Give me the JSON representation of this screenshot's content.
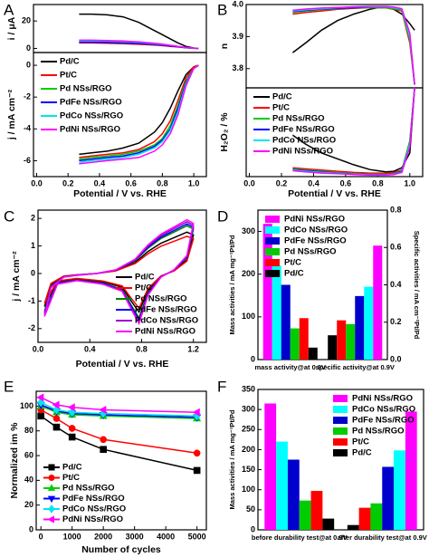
{
  "chart_data": [
    {
      "type": "line",
      "label": "A",
      "ylabel": "i / μA",
      "x": [
        0.27,
        0.35,
        0.45,
        0.55,
        0.65,
        0.75,
        0.8,
        0.85,
        0.9,
        0.95,
        1.0,
        1.03
      ],
      "xlim": [
        -0.02,
        1.08
      ],
      "ylim": [
        -3,
        32
      ],
      "yticks": [
        0,
        20
      ],
      "series": [
        {
          "color": "#000000",
          "values": [
            25,
            25,
            24.5,
            23,
            19,
            13,
            10,
            7,
            4,
            1.5,
            0.3,
            0
          ]
        },
        {
          "color": "#ff0000",
          "values": [
            4,
            4,
            3.8,
            3.5,
            3,
            2.4,
            2,
            1.5,
            1,
            0.5,
            0.1,
            0
          ]
        },
        {
          "color": "#00cc00",
          "values": [
            5,
            5,
            4.8,
            4.5,
            4,
            3.2,
            2.7,
            2,
            1.3,
            0.6,
            0.1,
            0
          ]
        },
        {
          "color": "#0000ff",
          "values": [
            4.5,
            4.5,
            4.3,
            4,
            3.6,
            2.9,
            2.4,
            1.8,
            1.2,
            0.5,
            0.1,
            0
          ]
        },
        {
          "color": "#00e5ee",
          "values": [
            5.5,
            5.5,
            5.3,
            5,
            4.4,
            3.5,
            2.9,
            2.2,
            1.4,
            0.6,
            0.1,
            0
          ]
        },
        {
          "color": "#ff00ff",
          "values": [
            6,
            6,
            5.8,
            5.4,
            4.8,
            3.8,
            3.1,
            2.3,
            1.5,
            0.7,
            0.1,
            0
          ]
        }
      ]
    },
    {
      "type": "line",
      "xlabel": "Potential / V vs. RHE",
      "ylabel": "j / mA cm⁻²",
      "x": [
        0.27,
        0.35,
        0.45,
        0.55,
        0.65,
        0.75,
        0.8,
        0.85,
        0.9,
        0.95,
        1.0,
        1.03
      ],
      "xlim": [
        -0.02,
        1.08
      ],
      "xticks": [
        {
          "value": 0,
          "label": "0.0"
        },
        0.2,
        0.4,
        0.6,
        0.8,
        {
          "value": 1,
          "label": "1.0"
        }
      ],
      "ylim": [
        -7,
        0.8
      ],
      "yticks": [
        -6,
        -4,
        -2,
        0
      ],
      "legend": "upper left",
      "series": [
        {
          "name": "Pd/C",
          "color": "#000000",
          "values": [
            -5.6,
            -5.5,
            -5.4,
            -5.2,
            -4.9,
            -4.2,
            -3.6,
            -2.7,
            -1.6,
            -0.6,
            -0.1,
            0
          ]
        },
        {
          "name": "Pt/C",
          "color": "#ff0000",
          "values": [
            -5.8,
            -5.7,
            -5.6,
            -5.5,
            -5.3,
            -4.8,
            -4.3,
            -3.5,
            -2.2,
            -0.8,
            -0.1,
            0
          ]
        },
        {
          "name": "Pd NSs/RGO",
          "color": "#00cc00",
          "values": [
            -5.9,
            -5.8,
            -5.7,
            -5.6,
            -5.4,
            -5.0,
            -4.6,
            -3.8,
            -2.5,
            -1.0,
            -0.2,
            0
          ]
        },
        {
          "name": "PdFe NSs/RGO",
          "color": "#0000ff",
          "values": [
            -6.0,
            -5.9,
            -5.8,
            -5.7,
            -5.5,
            -5.1,
            -4.7,
            -4.0,
            -2.7,
            -1.1,
            -0.2,
            0
          ]
        },
        {
          "name": "PdCo NSs/RGO",
          "color": "#00e5ee",
          "values": [
            -6.1,
            -6.0,
            -5.9,
            -5.8,
            -5.6,
            -5.2,
            -4.8,
            -4.1,
            -2.9,
            -1.2,
            -0.2,
            0
          ]
        },
        {
          "name": "PdNi NSs/RGO",
          "color": "#ff00ff",
          "values": [
            -6.2,
            -6.1,
            -6.0,
            -5.9,
            -5.8,
            -5.4,
            -5.0,
            -4.3,
            -3.1,
            -1.3,
            -0.2,
            0
          ]
        }
      ]
    },
    {
      "type": "line",
      "label": "B",
      "ylabel": "n",
      "x": [
        0.27,
        0.35,
        0.45,
        0.55,
        0.65,
        0.75,
        0.8,
        0.85,
        0.9,
        0.95,
        1.0,
        1.03
      ],
      "xlim": [
        -0.02,
        1.08
      ],
      "ylim": [
        3.74,
        4.0
      ],
      "yticks": [
        3.8,
        3.9,
        {
          "value": 4,
          "label": "4.0"
        }
      ],
      "series": [
        {
          "color": "#000000",
          "values": [
            3.85,
            3.88,
            3.92,
            3.95,
            3.97,
            3.985,
            3.99,
            3.99,
            3.985,
            3.97,
            3.94,
            3.92
          ]
        },
        {
          "color": "#ff0000",
          "values": [
            3.97,
            3.975,
            3.98,
            3.985,
            3.988,
            3.99,
            3.99,
            3.99,
            3.985,
            3.98,
            3.88,
            3.75
          ]
        },
        {
          "color": "#00cc00",
          "values": [
            3.975,
            3.98,
            3.984,
            3.987,
            3.99,
            3.99,
            3.99,
            3.99,
            3.987,
            3.982,
            3.89,
            3.75
          ]
        },
        {
          "color": "#0000ff",
          "values": [
            3.978,
            3.982,
            3.986,
            3.988,
            3.99,
            3.992,
            3.992,
            3.992,
            3.99,
            3.984,
            3.9,
            3.75
          ]
        },
        {
          "color": "#00e5ee",
          "values": [
            3.98,
            3.984,
            3.987,
            3.99,
            3.992,
            3.993,
            3.993,
            3.993,
            3.99,
            3.985,
            3.9,
            3.75
          ]
        },
        {
          "color": "#ff00ff",
          "values": [
            3.982,
            3.986,
            3.989,
            3.991,
            3.993,
            3.994,
            3.994,
            3.994,
            3.992,
            3.987,
            3.91,
            3.75
          ]
        }
      ]
    },
    {
      "type": "line",
      "xlabel": "Potential / V vs. RHE",
      "ylabel": "H₂O₂ / %",
      "x": [
        0.27,
        0.35,
        0.45,
        0.55,
        0.65,
        0.75,
        0.8,
        0.85,
        0.9,
        0.95,
        1.0,
        1.03
      ],
      "xlim": [
        -0.02,
        1.08
      ],
      "xticks": [
        {
          "value": 0,
          "label": "0.0"
        },
        0.2,
        0.4,
        0.6,
        0.8,
        {
          "value": 1,
          "label": "1.0"
        }
      ],
      "ylim": [
        0,
        15
      ],
      "legend": "upper left",
      "series": [
        {
          "name": "Pd/C",
          "color": "#000000",
          "values": [
            7,
            5.5,
            4,
            3,
            2,
            1.2,
            1,
            0.8,
            0.9,
            1.5,
            4,
            15
          ]
        },
        {
          "name": "Pt/C",
          "color": "#ff0000",
          "values": [
            1.5,
            1.3,
            1.1,
            0.9,
            0.7,
            0.6,
            0.6,
            0.6,
            0.7,
            1.1,
            6,
            15
          ]
        },
        {
          "name": "Pd NSs/RGO",
          "color": "#00cc00",
          "values": [
            1.3,
            1.1,
            0.9,
            0.7,
            0.5,
            0.4,
            0.4,
            0.4,
            0.5,
            1,
            6,
            15
          ]
        },
        {
          "name": "PdFe NSs/RGO",
          "color": "#0000ff",
          "values": [
            1.2,
            1.0,
            0.8,
            0.6,
            0.45,
            0.35,
            0.35,
            0.35,
            0.45,
            0.9,
            5.5,
            15
          ]
        },
        {
          "name": "PdCo NSs/RGO",
          "color": "#00e5ee",
          "values": [
            1.1,
            0.9,
            0.7,
            0.55,
            0.4,
            0.3,
            0.3,
            0.3,
            0.4,
            0.8,
            5.5,
            15
          ]
        },
        {
          "name": "PdNi NSs/RGO",
          "color": "#ff00ff",
          "values": [
            1.0,
            0.8,
            0.6,
            0.5,
            0.35,
            0.25,
            0.25,
            0.25,
            0.35,
            0.7,
            5,
            15
          ]
        }
      ]
    },
    {
      "type": "line",
      "label": "C",
      "xlabel": "Potential / V vs. RHE",
      "ylabel": "j / mA cm⁻²",
      "x": [
        0.05,
        0.1,
        0.2,
        0.3,
        0.45,
        0.6,
        0.75,
        0.85,
        0.95,
        1.05,
        1.15,
        1.2,
        1.15,
        1.05,
        0.95,
        0.85,
        0.78,
        0.72,
        0.65,
        0.5,
        0.3,
        0.15,
        0.05
      ],
      "xlim": [
        0,
        1.3
      ],
      "xticks": [
        {
          "value": 0,
          "label": "0.0"
        },
        0.4,
        0.8,
        1.2
      ],
      "ylim": [
        -2.5,
        2.3
      ],
      "yticks": [
        -2,
        -1,
        0,
        1,
        2
      ],
      "legend": "lower right",
      "series": [
        {
          "name": "Pd/C",
          "color": "#000000",
          "values": [
            -1.2,
            -0.4,
            -0.1,
            -0.05,
            0,
            0.1,
            0.4,
            0.8,
            1.1,
            1.3,
            1.5,
            1.4,
            0.5,
            0.1,
            -0.1,
            -0.6,
            -1.4,
            -1.0,
            -0.5,
            -0.3,
            -0.2,
            -0.3,
            -1.2
          ]
        },
        {
          "name": "Pt/C",
          "color": "#ff0000",
          "values": [
            -1.08,
            -0.36,
            -0.09,
            -0.05,
            0,
            0.09,
            0.36,
            0.72,
            0.99,
            1.17,
            1.35,
            1.26,
            0.45,
            0.09,
            -0.09,
            -0.54,
            -1.26,
            -0.9,
            -0.45,
            -0.27,
            -0.18,
            -0.27,
            -1.08
          ]
        },
        {
          "name": "Pd NSs/RGO",
          "color": "#008000",
          "values": [
            -1.38,
            -0.46,
            -0.12,
            -0.06,
            0,
            0.12,
            0.46,
            0.92,
            1.27,
            1.5,
            1.73,
            1.61,
            0.58,
            0.12,
            -0.12,
            -0.69,
            -1.61,
            -1.15,
            -0.58,
            -0.35,
            -0.23,
            -0.35,
            -1.38
          ]
        },
        {
          "name": "PdFe NSs/RGO",
          "color": "#0000ff",
          "values": [
            -1.44,
            -0.48,
            -0.12,
            -0.06,
            0,
            0.12,
            0.48,
            0.96,
            1.32,
            1.56,
            1.8,
            1.68,
            0.6,
            0.12,
            -0.12,
            -0.72,
            -1.68,
            -1.2,
            -0.6,
            -0.36,
            -0.24,
            -0.36,
            -1.44
          ]
        },
        {
          "name": "PdCo NSs/RGO",
          "color": "#9900cc",
          "values": [
            -1.5,
            -0.5,
            -0.13,
            -0.06,
            0,
            0.13,
            0.5,
            1,
            1.38,
            1.63,
            1.88,
            1.75,
            0.63,
            0.13,
            -0.13,
            -0.75,
            -1.75,
            -1.25,
            -0.63,
            -0.38,
            -0.25,
            -0.38,
            -1.5
          ]
        },
        {
          "name": "PdNi NSs/RGO",
          "color": "#ff00ff",
          "values": [
            -1.56,
            -0.52,
            -0.13,
            -0.07,
            0,
            0.13,
            0.52,
            1.04,
            1.43,
            1.69,
            1.95,
            1.82,
            0.65,
            0.13,
            -0.13,
            -0.78,
            -1.82,
            -1.3,
            -0.65,
            -0.39,
            -0.26,
            -0.39,
            -1.56
          ]
        }
      ]
    },
    {
      "type": "bar",
      "label": "D",
      "ylabel": "Mass activities / mA mg⁻¹Pt/Pd",
      "y2label": "Specific activities / mA cm⁻²Pt/Pd",
      "categories": [
        "mass activity@at 0.9V",
        "specific activity@at 0.9V"
      ],
      "category_axis": [
        "y",
        "y2"
      ],
      "ylim": [
        0,
        350
      ],
      "yticks": [
        0,
        100,
        200,
        300
      ],
      "y2lim": [
        0,
        0.8
      ],
      "y2ticks": [
        {
          "value": 0,
          "label": "0.0"
        },
        0.2,
        0.4,
        0.6,
        0.8
      ],
      "legend": "upper left",
      "series": [
        {
          "name": "PdNi NSs/RGO",
          "color": "#ff00ff",
          "values": [
            318,
            0.61
          ]
        },
        {
          "name": "PdCo NSs/RGO",
          "color": "#00ffff",
          "values": [
            220,
            0.39
          ]
        },
        {
          "name": "PdFe NSs/RGO",
          "color": "#0000cc",
          "values": [
            175,
            0.34
          ]
        },
        {
          "name": "Pd NSs/RGO",
          "color": "#00cc00",
          "values": [
            73,
            0.19
          ]
        },
        {
          "name": "Pt/C",
          "color": "#ff0000",
          "values": [
            97,
            0.21
          ]
        },
        {
          "name": "Pd/C",
          "color": "#000000",
          "values": [
            28,
            0.13
          ]
        }
      ]
    },
    {
      "type": "line",
      "label": "E",
      "xlabel": "Number of cycles",
      "ylabel": "Normalized im %",
      "x": [
        0,
        500,
        1000,
        2000,
        5000
      ],
      "xlim": [
        -150,
        5300
      ],
      "xticks": [
        0,
        1000,
        2000,
        3000,
        4000,
        5000
      ],
      "ylim": [
        0,
        112
      ],
      "yticks": [
        0,
        20,
        40,
        60,
        80,
        100
      ],
      "legend": "lower left",
      "series": [
        {
          "name": "Pd/C",
          "color": "#000000",
          "marker": "square",
          "values": [
            92,
            83,
            75,
            65,
            48
          ]
        },
        {
          "name": "Pt/C",
          "color": "#ff0000",
          "marker": "circle",
          "values": [
            97,
            90,
            82,
            73,
            62
          ]
        },
        {
          "name": "Pd NSs/RGO",
          "color": "#00cc00",
          "marker": "triangle-up",
          "values": [
            100,
            95,
            93,
            92,
            90
          ]
        },
        {
          "name": "PdFe NSs/RGO",
          "color": "#0000ff",
          "marker": "triangle-down",
          "values": [
            101,
            96,
            94,
            93,
            91
          ]
        },
        {
          "name": "PdCo NSs/RGO",
          "color": "#00e5ee",
          "marker": "diamond",
          "values": [
            103,
            97,
            95,
            94,
            92
          ]
        },
        {
          "name": "PdNi NSs/RGO",
          "color": "#ff00ff",
          "marker": "triangle-left",
          "values": [
            107,
            101,
            99,
            97,
            95
          ]
        }
      ]
    },
    {
      "type": "bar",
      "label": "F",
      "ylabel": "Mass activities / mA mg⁻¹Pt/Pd",
      "categories": [
        "before durability test@at 0.9V",
        "after durability test@at 0.9V"
      ],
      "ylim": [
        0,
        350
      ],
      "yticks": [
        0,
        50,
        100,
        150,
        200,
        250,
        300,
        350
      ],
      "legend": "upper right",
      "series": [
        {
          "name": "PdNi NSs/RGO",
          "color": "#ff00ff",
          "values": [
            315,
            295
          ]
        },
        {
          "name": "PdCo NSs/RGO",
          "color": "#00ffff",
          "values": [
            220,
            198
          ]
        },
        {
          "name": "PdFe NSs/RGO",
          "color": "#0000cc",
          "values": [
            175,
            157
          ]
        },
        {
          "name": "Pd NSs/RGO",
          "color": "#00cc00",
          "values": [
            73,
            66
          ]
        },
        {
          "name": "Pt/C",
          "color": "#ff0000",
          "values": [
            97,
            55
          ]
        },
        {
          "name": "Pd/C",
          "color": "#000000",
          "values": [
            28,
            12
          ]
        }
      ]
    }
  ]
}
